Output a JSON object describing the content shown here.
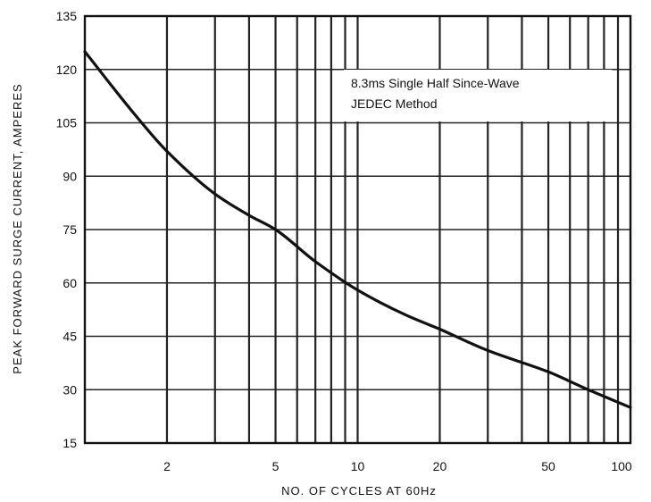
{
  "chart_data": {
    "type": "line",
    "title": "",
    "xlabel": "NO. OF CYCLES AT 60Hz",
    "ylabel": "PEAK FORWARD SURGE CURRENT, AMPERES",
    "xscale": "log",
    "xlim": [
      1,
      100
    ],
    "ylim": [
      15,
      135
    ],
    "xticks": [
      {
        "value": 2,
        "label": "2"
      },
      {
        "value": 5,
        "label": "5"
      },
      {
        "value": 10,
        "label": "10"
      },
      {
        "value": 20,
        "label": "20"
      },
      {
        "value": 50,
        "label": "50"
      },
      {
        "value": 100,
        "label": "100"
      }
    ],
    "yticks": [
      15,
      30,
      45,
      60,
      75,
      90,
      105,
      120,
      135
    ],
    "grid": true,
    "annotation": [
      "8.3ms Single Half Since-Wave",
      "JEDEC Method"
    ],
    "series": [
      {
        "x": [
          1,
          1.5,
          2,
          3,
          4,
          5,
          7,
          10,
          15,
          20,
          30,
          50,
          70,
          100
        ],
        "y": [
          125,
          108,
          97,
          85,
          79,
          75,
          66,
          58,
          51,
          47,
          41,
          35,
          30,
          25
        ]
      }
    ],
    "colors": {
      "line": "#111111",
      "grid": "#222222",
      "background": "#ffffff"
    }
  }
}
